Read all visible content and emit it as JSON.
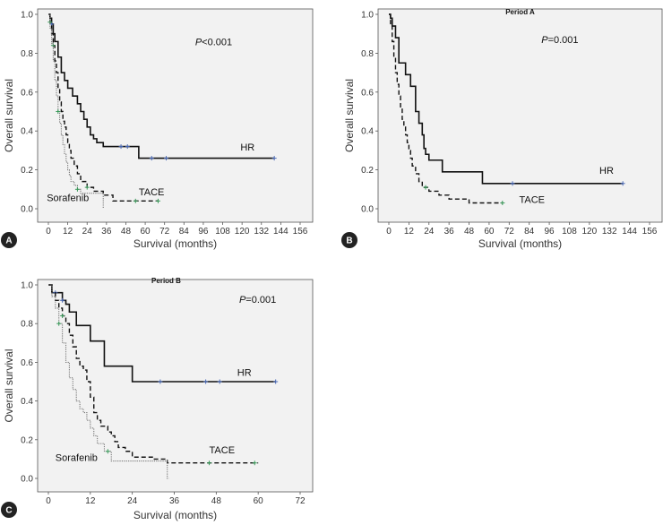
{
  "chart_data": [
    {
      "id": "A",
      "type": "line",
      "panel_label": "A",
      "title": "",
      "p_prefix": "P",
      "p_suffix": "<0.001",
      "xlabel": "Survival (months)",
      "ylabel": "Overall survival",
      "xlim": [
        0,
        156
      ],
      "ylim": [
        0,
        1.0
      ],
      "xticks": [
        0,
        12,
        24,
        36,
        48,
        60,
        72,
        84,
        96,
        108,
        120,
        132,
        144,
        156
      ],
      "yticks": [
        0.0,
        0.2,
        0.4,
        0.6,
        0.8,
        1.0
      ],
      "series": [
        {
          "name": "HR",
          "label_at": [
            119,
            0.3
          ],
          "style": "solid",
          "color": "#111111",
          "x": [
            0,
            1,
            2,
            3,
            4,
            6,
            8,
            10,
            12,
            15,
            18,
            20,
            22,
            24,
            26,
            28,
            30,
            34,
            56,
            140
          ],
          "y": [
            1.0,
            0.98,
            0.95,
            0.9,
            0.86,
            0.78,
            0.7,
            0.66,
            0.62,
            0.58,
            0.54,
            0.5,
            0.46,
            0.42,
            0.38,
            0.36,
            0.34,
            0.32,
            0.26,
            0.26
          ],
          "censored_x": [
            2,
            45,
            49,
            64,
            73,
            140
          ]
        },
        {
          "name": "TACE",
          "label_at": [
            56,
            0.07
          ],
          "style": "dashed",
          "color": "#111111",
          "x": [
            0,
            1,
            2,
            3,
            4,
            5,
            6,
            7,
            8,
            9,
            10,
            11,
            12,
            13,
            14,
            16,
            18,
            20,
            24,
            28,
            34,
            40,
            68
          ],
          "y": [
            1.0,
            0.96,
            0.9,
            0.84,
            0.76,
            0.7,
            0.62,
            0.55,
            0.5,
            0.45,
            0.42,
            0.38,
            0.34,
            0.3,
            0.26,
            0.22,
            0.18,
            0.14,
            0.11,
            0.09,
            0.07,
            0.04,
            0.04
          ],
          "censored_x": [
            1,
            3,
            24,
            54,
            68
          ]
        },
        {
          "name": "Sorafenib",
          "label_at": [
            -1,
            0.04
          ],
          "style": "dotted",
          "color": "#777777",
          "x": [
            0,
            1,
            2,
            3,
            4,
            5,
            6,
            7,
            8,
            9,
            10,
            11,
            12,
            13,
            14,
            16,
            18,
            20,
            24,
            32,
            34
          ],
          "y": [
            1.0,
            0.93,
            0.85,
            0.76,
            0.66,
            0.58,
            0.5,
            0.44,
            0.38,
            0.33,
            0.28,
            0.24,
            0.2,
            0.17,
            0.14,
            0.12,
            0.1,
            0.08,
            0.08,
            0.08,
            0.0
          ],
          "censored_x": [
            6,
            18
          ]
        }
      ]
    },
    {
      "id": "B",
      "type": "line",
      "panel_label": "B",
      "title": "Period A",
      "p_prefix": "P",
      "p_suffix": "=0.001",
      "xlabel": "Survival (months)",
      "ylabel": "Overall survival",
      "xlim": [
        0,
        156
      ],
      "ylim": [
        0,
        1.0
      ],
      "xticks": [
        0,
        12,
        24,
        36,
        48,
        60,
        72,
        84,
        96,
        108,
        120,
        132,
        144,
        156
      ],
      "yticks": [
        0.0,
        0.2,
        0.4,
        0.6,
        0.8,
        1.0
      ],
      "series": [
        {
          "name": "HR",
          "label_at": [
            126,
            0.18
          ],
          "style": "solid",
          "color": "#111111",
          "x": [
            0,
            1,
            2,
            4,
            6,
            10,
            13,
            16,
            18,
            20,
            21,
            22,
            24,
            28,
            32,
            56,
            140
          ],
          "y": [
            1.0,
            0.98,
            0.94,
            0.88,
            0.75,
            0.69,
            0.63,
            0.5,
            0.44,
            0.38,
            0.31,
            0.28,
            0.25,
            0.25,
            0.19,
            0.13,
            0.13
          ],
          "censored_x": [
            74,
            140
          ]
        },
        {
          "name": "TACE",
          "label_at": [
            78,
            0.03
          ],
          "style": "dashed",
          "color": "#111111",
          "x": [
            0,
            1,
            2,
            3,
            4,
            5,
            6,
            7,
            8,
            9,
            10,
            11,
            12,
            13,
            14,
            16,
            18,
            20,
            24,
            30,
            36,
            48,
            68
          ],
          "y": [
            1.0,
            0.94,
            0.86,
            0.78,
            0.7,
            0.64,
            0.58,
            0.52,
            0.46,
            0.42,
            0.38,
            0.34,
            0.3,
            0.26,
            0.22,
            0.18,
            0.14,
            0.11,
            0.09,
            0.07,
            0.05,
            0.03,
            0.03
          ],
          "censored_x": [
            22,
            68
          ]
        }
      ]
    },
    {
      "id": "C",
      "type": "line",
      "panel_label": "C",
      "title": "Period B",
      "p_prefix": "P",
      "p_suffix": "=0.001",
      "xlabel": "Survival (months)",
      "ylabel": "Overall survival",
      "xlim": [
        0,
        72
      ],
      "ylim": [
        0,
        1.0
      ],
      "xticks": [
        0,
        12,
        24,
        36,
        48,
        60,
        72
      ],
      "yticks": [
        0.0,
        0.2,
        0.4,
        0.6,
        0.8,
        1.0
      ],
      "series": [
        {
          "name": "HR",
          "label_at": [
            54,
            0.53
          ],
          "style": "solid",
          "color": "#111111",
          "x": [
            0,
            1,
            2,
            4,
            5,
            6,
            7,
            8,
            10,
            12,
            14,
            16,
            18,
            20,
            22,
            24,
            26,
            65
          ],
          "y": [
            1.0,
            0.96,
            0.96,
            0.92,
            0.9,
            0.86,
            0.86,
            0.79,
            0.79,
            0.71,
            0.71,
            0.58,
            0.58,
            0.58,
            0.58,
            0.5,
            0.5,
            0.5
          ],
          "censored_x": [
            2,
            4,
            32,
            45,
            49,
            65
          ]
        },
        {
          "name": "TACE",
          "label_at": [
            46,
            0.13
          ],
          "style": "dashed",
          "color": "#111111",
          "x": [
            0,
            1,
            2,
            3,
            4,
            5,
            6,
            7,
            8,
            9,
            10,
            11,
            12,
            13,
            14,
            15,
            16,
            17,
            18,
            19,
            20,
            22,
            24,
            30,
            34,
            60
          ],
          "y": [
            1.0,
            0.96,
            0.92,
            0.88,
            0.84,
            0.8,
            0.74,
            0.68,
            0.62,
            0.58,
            0.56,
            0.5,
            0.42,
            0.34,
            0.3,
            0.27,
            0.27,
            0.24,
            0.22,
            0.19,
            0.16,
            0.14,
            0.11,
            0.1,
            0.08,
            0.08
          ],
          "censored_x": [
            4,
            46,
            59
          ]
        },
        {
          "name": "Sorafenib",
          "label_at": [
            2,
            0.09
          ],
          "style": "dotted",
          "color": "#777777",
          "x": [
            0,
            1,
            2,
            3,
            4,
            5,
            6,
            7,
            8,
            9,
            10,
            11,
            12,
            13,
            14,
            16,
            18,
            20,
            24,
            28,
            34,
            34.5
          ],
          "y": [
            1.0,
            0.94,
            0.88,
            0.8,
            0.7,
            0.6,
            0.52,
            0.46,
            0.4,
            0.36,
            0.34,
            0.3,
            0.26,
            0.22,
            0.18,
            0.14,
            0.09,
            0.09,
            0.09,
            0.09,
            0.0,
            0.0
          ],
          "censored_x": [
            3,
            17
          ]
        }
      ]
    }
  ]
}
